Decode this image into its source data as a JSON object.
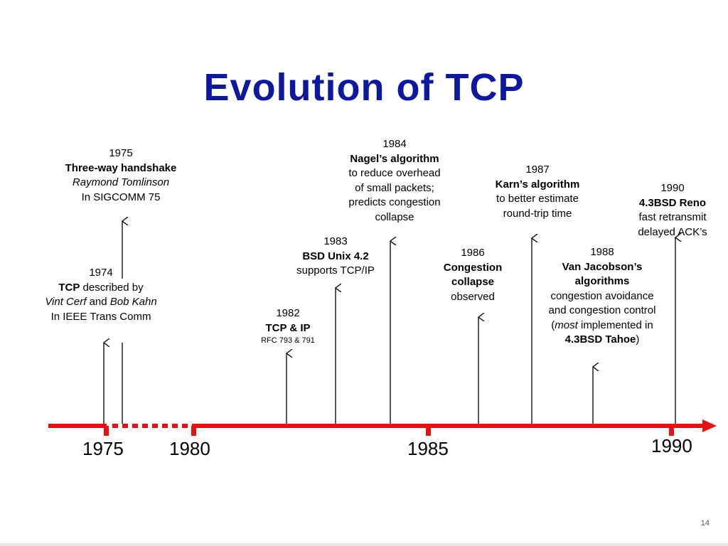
{
  "title": "Evolution of TCP",
  "page_number": "14",
  "axis_years": [
    "1975",
    "1980",
    "1985",
    "1990"
  ],
  "colors": {
    "title": "#0d18a0",
    "timeline": "#e81010",
    "text": "#000000"
  },
  "events": {
    "e1974": {
      "year": "1974",
      "l1b": "TCP",
      "l1": " described by",
      "l2i1": "Vint Cerf",
      "l2": " and ",
      "l2i2": "Bob Kahn",
      "l3": "In IEEE Trans Comm"
    },
    "e1975": {
      "year": "1975",
      "l1": "Three-way handshake",
      "l2": "Raymond Tomlinson",
      "l3": "In SIGCOMM 75"
    },
    "e1982": {
      "year": "1982",
      "l1": "TCP & IP",
      "l2": "RFC 793 & 791"
    },
    "e1983": {
      "year": "1983",
      "l1": "BSD Unix 4.2",
      "l2": "supports TCP/IP"
    },
    "e1984": {
      "year": "1984",
      "l1": "Nagel’s algorithm",
      "l2": "to reduce overhead",
      "l3": "of small packets;",
      "l4": "predicts congestion",
      "l5": "collapse"
    },
    "e1986": {
      "year": "1986",
      "l1": "Congestion",
      "l2": "collapse",
      "l3": "observed"
    },
    "e1987": {
      "year": "1987",
      "l1": "Karn’s algorithm",
      "l2": "to better estimate",
      "l3": "round-trip time"
    },
    "e1988": {
      "year": "1988",
      "l1": "Van Jacobson’s",
      "l2": "algorithms",
      "l3": "congestion avoidance",
      "l4": "and congestion control",
      "l5a": "(",
      "l5i": "most",
      "l5b": " implemented in",
      "l6b": "4.3BSD Tahoe",
      "l6": ")"
    },
    "e1990": {
      "year": "1990",
      "l1": "4.3BSD Reno",
      "l2": "fast retransmit",
      "l3": "delayed ACK’s"
    }
  }
}
